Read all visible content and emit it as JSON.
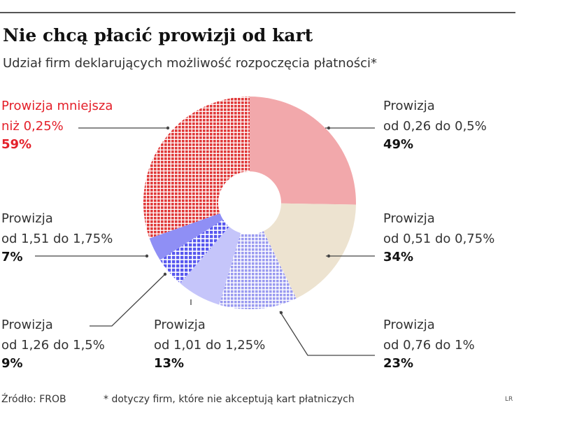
{
  "title": "Nie chcą płacić prowizji od kart",
  "subtitle": "Udział firm deklarujących możliwość rozpoczęcia płatności*",
  "source": "Źródło: FROB",
  "footnote": "* dotyczy firm, które nie akceptują kart płatniczych",
  "credit": "LR",
  "chart_data": {
    "type": "pie",
    "variant": "donut",
    "start_angle_deg": 0,
    "direction": "clockwise",
    "slices": [
      {
        "line1": "Prowizja",
        "line2": "od 0,26 do 0,5%",
        "value": 49,
        "value_label": "49%",
        "color": "#f2a8ab",
        "pattern": "solid"
      },
      {
        "line1": "Prowizja",
        "line2": "od 0,51 do 0,75%",
        "value": 34,
        "value_label": "34%",
        "color": "#ede3d0",
        "pattern": "solid"
      },
      {
        "line1": "Prowizja",
        "line2": "od 0,76 do 1%",
        "value": 23,
        "value_label": "23%",
        "color": "#b9b9f3",
        "pattern": "grid-fine"
      },
      {
        "line1": "Prowizja",
        "line2": "od 1,01 do 1,25%",
        "value": 13,
        "value_label": "13%",
        "color": "#c5c5fa",
        "pattern": "solid"
      },
      {
        "line1": "Prowizja",
        "line2": "od 1,26 do 1,5%",
        "value": 9,
        "value_label": "9%",
        "color": "#5858ef",
        "pattern": "grid-coarse"
      },
      {
        "line1": "Prowizja",
        "line2": "od 1,51 do 1,75%",
        "value": 7,
        "value_label": "7%",
        "color": "#8f8ff5",
        "pattern": "solid"
      },
      {
        "line1": "Prowizja mniejsza",
        "line2": "niż 0,25%",
        "value": 59,
        "value_label": "59%",
        "color": "#e03a3a",
        "pattern": "grid-coarse",
        "highlight": true
      }
    ]
  }
}
